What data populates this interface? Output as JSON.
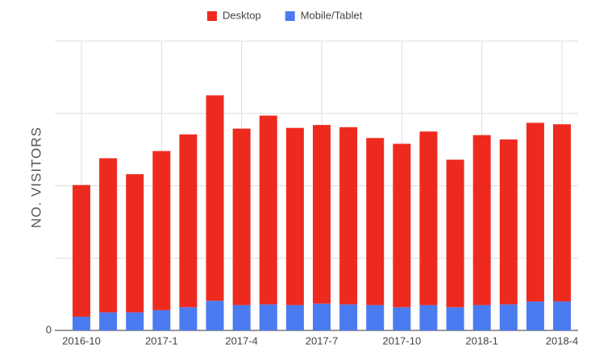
{
  "chart_data": {
    "type": "stacked_bar",
    "y_label": "NO. VISITORS",
    "categories": [
      "2016-10",
      null,
      null,
      "2017-1",
      null,
      null,
      "2017-4",
      null,
      null,
      "2017-7",
      null,
      null,
      "2017-10",
      null,
      null,
      "2018-1",
      null,
      null,
      "2018-4"
    ],
    "series": [
      {
        "name": "Desktop",
        "color": "#ee2a1f",
        "values": [
          1.82,
          2.13,
          1.91,
          2.2,
          2.39,
          2.84,
          2.44,
          2.61,
          2.45,
          2.47,
          2.45,
          2.31,
          2.26,
          2.4,
          2.04,
          2.35,
          2.28,
          2.47,
          2.45
        ]
      },
      {
        "name": "Mobile/Tablet",
        "color": "#4b7bf0",
        "values": [
          0.19,
          0.25,
          0.25,
          0.28,
          0.32,
          0.41,
          0.35,
          0.36,
          0.35,
          0.37,
          0.36,
          0.35,
          0.32,
          0.35,
          0.32,
          0.35,
          0.36,
          0.4,
          0.4
        ]
      }
    ],
    "ylim": [
      0,
      4
    ],
    "yticks": [
      0
    ],
    "ygrid": [
      0,
      1,
      2,
      3,
      4
    ],
    "legend": "top"
  }
}
